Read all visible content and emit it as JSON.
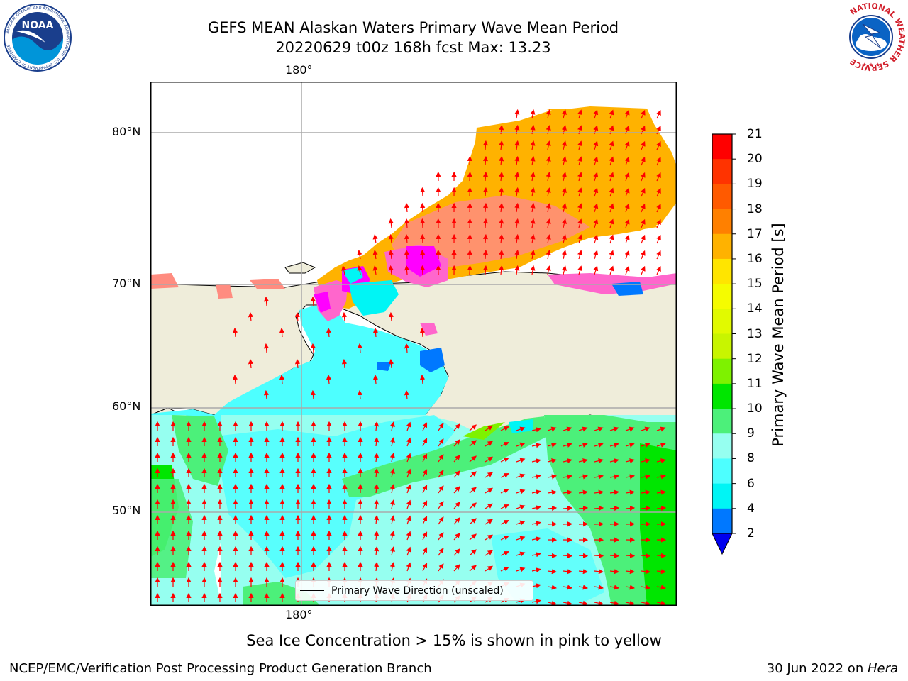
{
  "header": {
    "title_line1": "GEFS MEAN Alaskan Waters Primary Wave Mean Period",
    "title_line2": "20220629 t00z 168h fcst   Max: 13.23"
  },
  "logos": {
    "left_name": "NOAA",
    "left_ring_text": "NATIONAL OCEANIC AND ATMOSPHERIC ADMINISTRATION · U.S. DEPARTMENT OF COMMERCE ·",
    "right_ring_text": "NATIONAL WEATHER SERVICE"
  },
  "map": {
    "lon_top": "180°",
    "lon_bottom": "180°",
    "lat_labels": [
      "80°N",
      "70°N",
      "60°N",
      "50°N"
    ],
    "legend_text": "Primary Wave Direction (unscaled)",
    "colors": {
      "land": "#efedda",
      "arrow": "#ff0000",
      "coast": "#000000",
      "grid": "#aaaaaa"
    }
  },
  "colorbar": {
    "label": "Primary Wave Mean Period [s]",
    "ticks": [
      "21",
      "20",
      "19",
      "18",
      "17",
      "16",
      "15",
      "14",
      "13",
      "12",
      "11",
      "10",
      "9",
      "8",
      "6",
      "4",
      "2"
    ],
    "band_colors": [
      "#ff0000",
      "#ff3300",
      "#ff5a00",
      "#ff8000",
      "#ffb200",
      "#ffe500",
      "#f5fc00",
      "#e1fa00",
      "#c8f500",
      "#7ef200",
      "#00e600",
      "#4cf07a",
      "#96fff0",
      "#4dffff",
      "#00f5f5",
      "#0078ff"
    ],
    "extend_color": "#0000ee"
  },
  "subtitle": "Sea Ice Concentration > 15% is shown in pink to yellow",
  "footer": {
    "left": "NCEP/EMC/Verification Post Processing Product Generation Branch",
    "right_prefix": "30 Jun 2022 on ",
    "right_host": "Hera"
  }
}
